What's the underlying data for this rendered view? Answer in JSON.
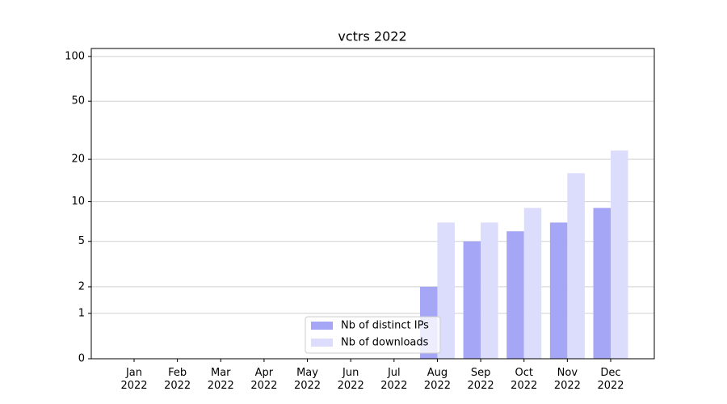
{
  "chart_data": {
    "type": "bar",
    "title": "vctrs 2022",
    "categories": [
      "Jan 2022",
      "Feb 2022",
      "Mar 2022",
      "Apr 2022",
      "May 2022",
      "Jun 2022",
      "Jul 2022",
      "Aug 2022",
      "Sep 2022",
      "Oct 2022",
      "Nov 2022",
      "Dec 2022"
    ],
    "series": [
      {
        "name": "Nb of distinct IPs",
        "color": "#a6a6f6",
        "values": [
          0,
          0,
          0,
          0,
          0,
          0,
          0,
          2,
          5,
          6,
          7,
          9
        ]
      },
      {
        "name": "Nb of downloads",
        "color": "#dcdcfc",
        "values": [
          0,
          0,
          0,
          0,
          0,
          0,
          0,
          7,
          7,
          9,
          16,
          23
        ]
      }
    ],
    "yscale": "log1p",
    "ylim": [
      0,
      113
    ],
    "yticks": [
      0,
      1,
      2,
      5,
      10,
      20,
      50,
      100
    ],
    "grid": true,
    "legend": "lower center"
  }
}
